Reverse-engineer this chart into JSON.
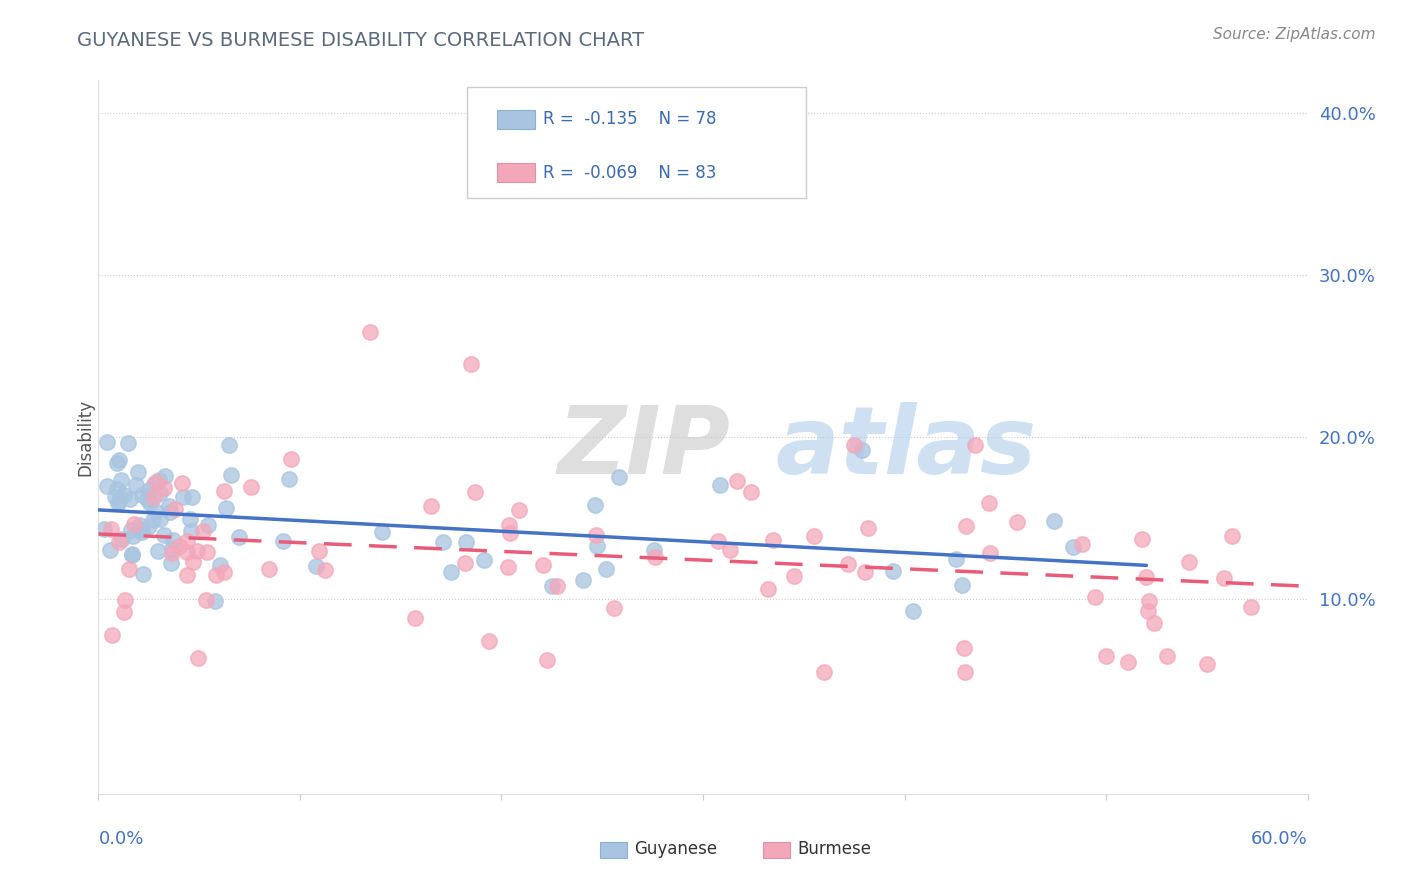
{
  "title": "GUYANESE VS BURMESE DISABILITY CORRELATION CHART",
  "source": "Source: ZipAtlas.com",
  "ylabel": "Disability",
  "xlim": [
    0.0,
    0.6
  ],
  "ylim": [
    -0.02,
    0.42
  ],
  "yticks": [
    0.1,
    0.2,
    0.3,
    0.4
  ],
  "ytick_labels": [
    "10.0%",
    "20.0%",
    "30.0%",
    "40.0%"
  ],
  "background_color": "#ffffff",
  "guyanese_color": "#a8c4e0",
  "burmese_color": "#f4a7b9",
  "guyanese_line_color": "#4472c4",
  "burmese_line_color": "#e85c7a",
  "guyanese_R": -0.135,
  "guyanese_N": 78,
  "burmese_R": -0.069,
  "burmese_N": 83
}
